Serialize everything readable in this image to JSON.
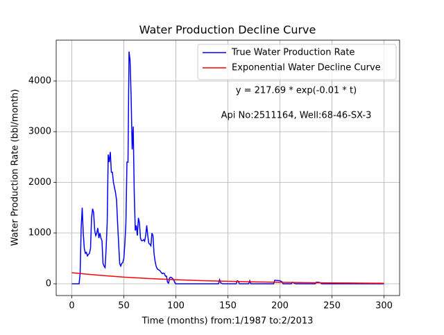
{
  "chart_data": {
    "type": "line",
    "title": "Water Production Decline Curve",
    "xlabel": "Time (months) from:1/1987 to:2/2013",
    "ylabel": "Water Production Rate (bbl/month)",
    "annotations": [
      "y = 217.69 * exp(-0.01 * t)",
      "Api No:2511164, Well:68-46-SX-3"
    ],
    "series": [
      {
        "name": "True Water Production Rate",
        "color": "#0000ff",
        "x": [
          0,
          7,
          8,
          9,
          10,
          11,
          12,
          13,
          14,
          15,
          16,
          17,
          18,
          19,
          20,
          21,
          22,
          23,
          24,
          25,
          26,
          27,
          28,
          29,
          30,
          31,
          32,
          33,
          34,
          35,
          36,
          37,
          38,
          39,
          40,
          41,
          42,
          43,
          44,
          45,
          46,
          47,
          48,
          49,
          50,
          51,
          52,
          53,
          54,
          55,
          56,
          57,
          58,
          59,
          60,
          61,
          62,
          63,
          64,
          65,
          66,
          67,
          68,
          69,
          70,
          71,
          72,
          73,
          74,
          75,
          76,
          77,
          78,
          79,
          80,
          81,
          82,
          83,
          84,
          85,
          86,
          87,
          88,
          89,
          90,
          91,
          92,
          93,
          94,
          95,
          96,
          97,
          98,
          99,
          100,
          141,
          142,
          143,
          145,
          158,
          159,
          160,
          161,
          170,
          171,
          172,
          194,
          195,
          200,
          202,
          203,
          211,
          212,
          213,
          215,
          234,
          235,
          237,
          239,
          240,
          300
        ],
        "values": [
          0,
          0,
          200,
          1100,
          1500,
          1000,
          700,
          600,
          620,
          550,
          580,
          600,
          700,
          1300,
          1480,
          1400,
          1050,
          950,
          1000,
          1100,
          900,
          1000,
          900,
          850,
          400,
          350,
          320,
          700,
          1200,
          2550,
          2400,
          2600,
          2200,
          2200,
          2000,
          1900,
          1800,
          1650,
          1200,
          800,
          400,
          350,
          400,
          420,
          500,
          800,
          1200,
          2400,
          2400,
          4580,
          4400,
          3700,
          2650,
          3100,
          1800,
          1050,
          1150,
          950,
          1300,
          1200,
          900,
          850,
          850,
          870,
          840,
          950,
          1150,
          950,
          800,
          780,
          750,
          1000,
          950,
          600,
          450,
          350,
          300,
          280,
          270,
          250,
          220,
          200,
          210,
          200,
          150,
          150,
          30,
          10,
          120,
          130,
          120,
          100,
          80,
          20,
          0,
          0,
          80,
          20,
          0,
          0,
          60,
          50,
          0,
          0,
          60,
          0,
          0,
          70,
          60,
          40,
          0,
          0,
          30,
          20,
          0,
          0,
          30,
          30,
          20,
          0,
          0
        ]
      },
      {
        "name": "Exponential Water Decline Curve",
        "color": "#ff0000",
        "x": [
          0,
          25,
          50,
          75,
          100,
          125,
          150,
          175,
          200,
          225,
          250,
          275,
          300
        ],
        "values": [
          218,
          170,
          132,
          103,
          80,
          62,
          49,
          38,
          29,
          23,
          18,
          14,
          11
        ]
      }
    ],
    "xlim": [
      -15,
      315
    ],
    "xticks": [
      0,
      50,
      100,
      150,
      200,
      250,
      300
    ],
    "ylim": [
      -232,
      4805
    ],
    "yticks": [
      0,
      1000,
      2000,
      3000,
      4000
    ],
    "grid": true,
    "legend": "upper right"
  }
}
